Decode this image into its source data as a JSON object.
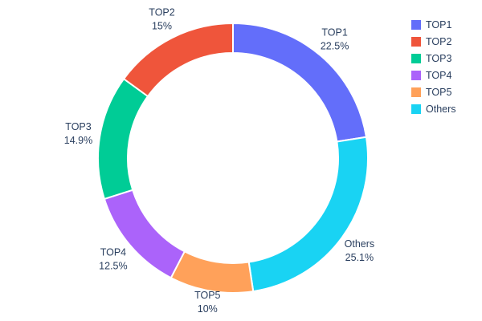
{
  "chart_data": {
    "type": "pie",
    "subtype": "donut",
    "hole": 0.78,
    "title": "",
    "labels": [
      "TOP1",
      "TOP2",
      "TOP3",
      "TOP4",
      "TOP5",
      "Others"
    ],
    "values": [
      22.5,
      15,
      14.9,
      12.5,
      10,
      25.1
    ],
    "percent_labels": [
      "22.5%",
      "15%",
      "14.9%",
      "12.5%",
      "10%",
      "25.1%"
    ],
    "colors": [
      "#636EFA",
      "#EF553B",
      "#00CC96",
      "#AB63FA",
      "#FFA15A",
      "#19D3F3"
    ],
    "display_order_clockwise_from_top": [
      0,
      5,
      4,
      3,
      2,
      1
    ],
    "slice_border_color": "#ffffff",
    "text_color": "#2a3f5f",
    "background": "#ffffff",
    "legend": {
      "position": "top-right",
      "entries": [
        "TOP1",
        "TOP2",
        "TOP3",
        "TOP4",
        "TOP5",
        "Others"
      ]
    }
  }
}
